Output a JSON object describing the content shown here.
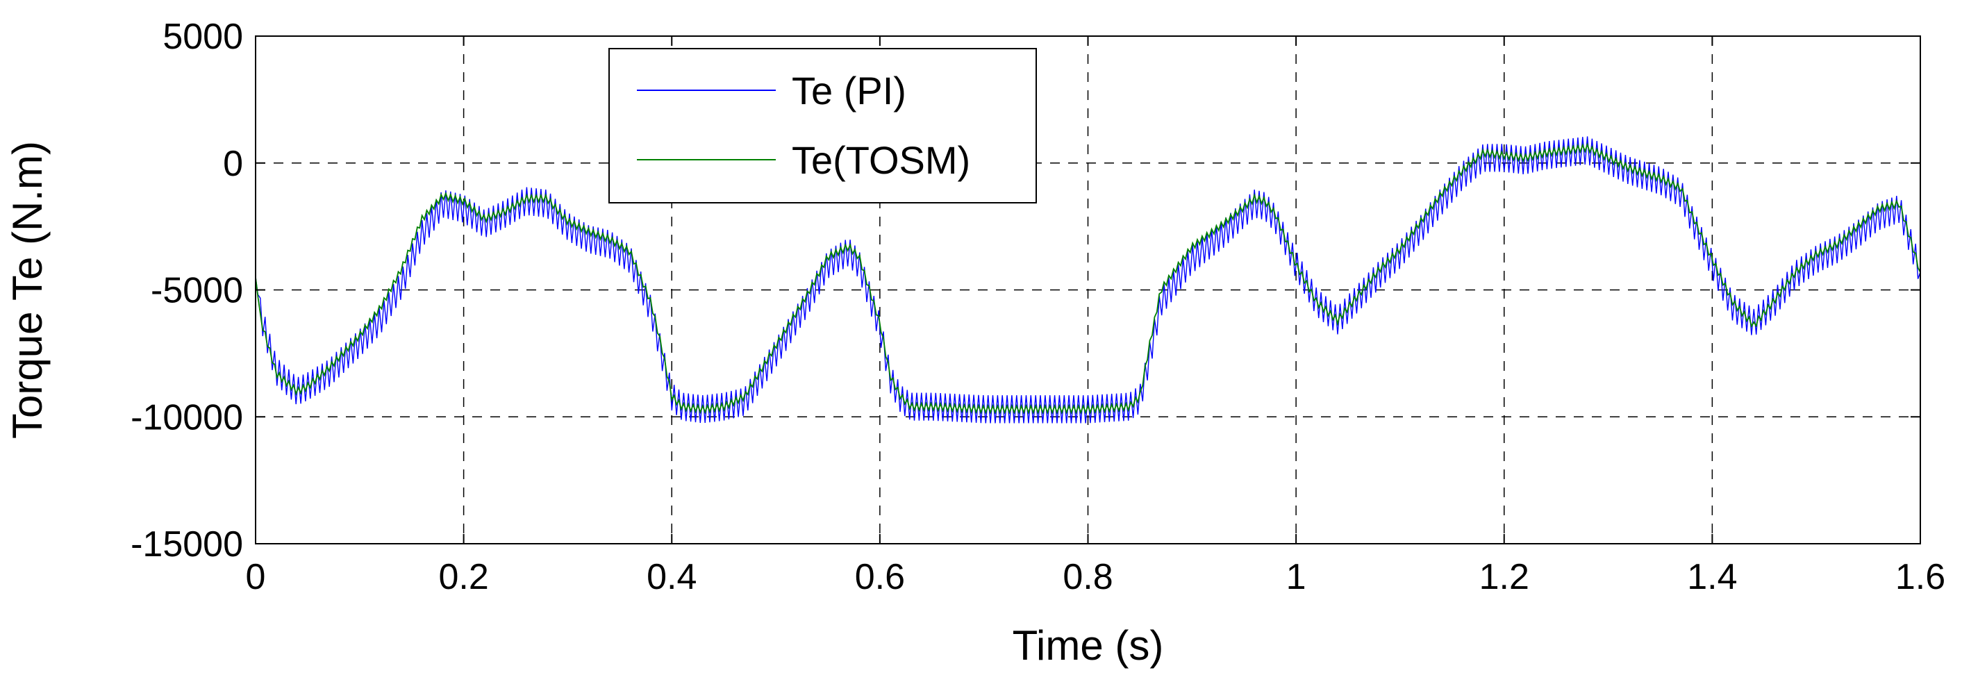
{
  "chart_data": {
    "type": "line",
    "title": "",
    "xlabel": "Time (s)",
    "ylabel": "Torque Te (N.m)",
    "xlim": [
      0,
      1.6
    ],
    "ylim": [
      -15000,
      5000
    ],
    "xticks": [
      0,
      0.2,
      0.4,
      0.6,
      0.8,
      1.0,
      1.2,
      1.4,
      1.6
    ],
    "xtick_labels": [
      "0",
      "0.2",
      "0.4",
      "0.6",
      "0.8",
      "1",
      "1.2",
      "1.4",
      "1.6"
    ],
    "yticks": [
      -15000,
      -10000,
      -5000,
      0,
      5000
    ],
    "ytick_labels": [
      "-15000",
      "-10000",
      "-5000",
      "0",
      "5000"
    ],
    "grid": true,
    "legend_position": "top-left",
    "series": [
      {
        "name": "Te (PI)",
        "color": "#0000ff",
        "ripple_amplitude": 550,
        "x": [
          0,
          0.005,
          0.02,
          0.04,
          0.05,
          0.07,
          0.1,
          0.12,
          0.14,
          0.16,
          0.18,
          0.2,
          0.22,
          0.24,
          0.26,
          0.28,
          0.3,
          0.32,
          0.34,
          0.36,
          0.38,
          0.39,
          0.4,
          0.41,
          0.43,
          0.45,
          0.47,
          0.5,
          0.53,
          0.55,
          0.57,
          0.58,
          0.6,
          0.61,
          0.62,
          0.63,
          0.65,
          0.7,
          0.75,
          0.8,
          0.84,
          0.85,
          0.86,
          0.87,
          0.9,
          0.93,
          0.96,
          0.97,
          0.98,
          1.0,
          1.02,
          1.04,
          1.06,
          1.08,
          1.1,
          1.12,
          1.14,
          1.16,
          1.18,
          1.2,
          1.22,
          1.24,
          1.26,
          1.28,
          1.3,
          1.32,
          1.35,
          1.37,
          1.38,
          1.4,
          1.42,
          1.44,
          1.46,
          1.48,
          1.5,
          1.52,
          1.54,
          1.56,
          1.58,
          1.6
        ],
        "y": [
          -4500,
          -6000,
          -8200,
          -9000,
          -8800,
          -8300,
          -7100,
          -6200,
          -4800,
          -2800,
          -1600,
          -1800,
          -2400,
          -2000,
          -1500,
          -1600,
          -2500,
          -3000,
          -3200,
          -3800,
          -5800,
          -7500,
          -9200,
          -9600,
          -9700,
          -9600,
          -9400,
          -7500,
          -5500,
          -4000,
          -3500,
          -4000,
          -6500,
          -8500,
          -9300,
          -9600,
          -9600,
          -9700,
          -9700,
          -9700,
          -9600,
          -9300,
          -7500,
          -5500,
          -3800,
          -2800,
          -1600,
          -1700,
          -2200,
          -4000,
          -5500,
          -6200,
          -5300,
          -4400,
          -3600,
          -2600,
          -1500,
          -500,
          200,
          200,
          100,
          300,
          400,
          500,
          100,
          -300,
          -700,
          -1200,
          -2200,
          -4000,
          -5700,
          -6300,
          -5500,
          -4400,
          -3800,
          -3400,
          -2800,
          -2100,
          -1800,
          -4300
        ]
      },
      {
        "name": "Te(TOSM)",
        "color": "#008000",
        "ripple_amplitude": 130,
        "x": [
          0,
          0.005,
          0.02,
          0.04,
          0.05,
          0.07,
          0.1,
          0.12,
          0.14,
          0.16,
          0.18,
          0.2,
          0.22,
          0.24,
          0.26,
          0.28,
          0.3,
          0.32,
          0.34,
          0.36,
          0.38,
          0.39,
          0.4,
          0.41,
          0.43,
          0.45,
          0.47,
          0.5,
          0.53,
          0.55,
          0.57,
          0.58,
          0.6,
          0.61,
          0.62,
          0.63,
          0.65,
          0.7,
          0.75,
          0.8,
          0.84,
          0.85,
          0.86,
          0.87,
          0.9,
          0.93,
          0.96,
          0.97,
          0.98,
          1.0,
          1.02,
          1.04,
          1.06,
          1.08,
          1.1,
          1.12,
          1.14,
          1.16,
          1.18,
          1.2,
          1.22,
          1.24,
          1.26,
          1.28,
          1.3,
          1.32,
          1.35,
          1.37,
          1.38,
          1.4,
          1.42,
          1.44,
          1.46,
          1.48,
          1.5,
          1.52,
          1.54,
          1.56,
          1.58,
          1.6
        ],
        "y": [
          -4500,
          -6200,
          -8300,
          -9000,
          -8800,
          -8100,
          -6800,
          -5700,
          -4200,
          -2200,
          -1300,
          -1500,
          -2200,
          -1900,
          -1400,
          -1400,
          -2300,
          -2700,
          -3000,
          -3500,
          -5500,
          -7200,
          -9200,
          -9600,
          -9700,
          -9600,
          -9200,
          -7200,
          -5200,
          -3700,
          -3300,
          -3700,
          -6300,
          -8400,
          -9200,
          -9600,
          -9600,
          -9700,
          -9700,
          -9700,
          -9600,
          -9200,
          -7000,
          -5000,
          -3300,
          -2400,
          -1400,
          -1500,
          -2000,
          -4000,
          -5500,
          -6200,
          -5200,
          -4200,
          -3400,
          -2300,
          -1200,
          -300,
          400,
          300,
          200,
          400,
          500,
          600,
          200,
          -200,
          -600,
          -1000,
          -2000,
          -3800,
          -5500,
          -6400,
          -5400,
          -4300,
          -3600,
          -3200,
          -2500,
          -1800,
          -1600,
          -4300
        ]
      }
    ]
  }
}
